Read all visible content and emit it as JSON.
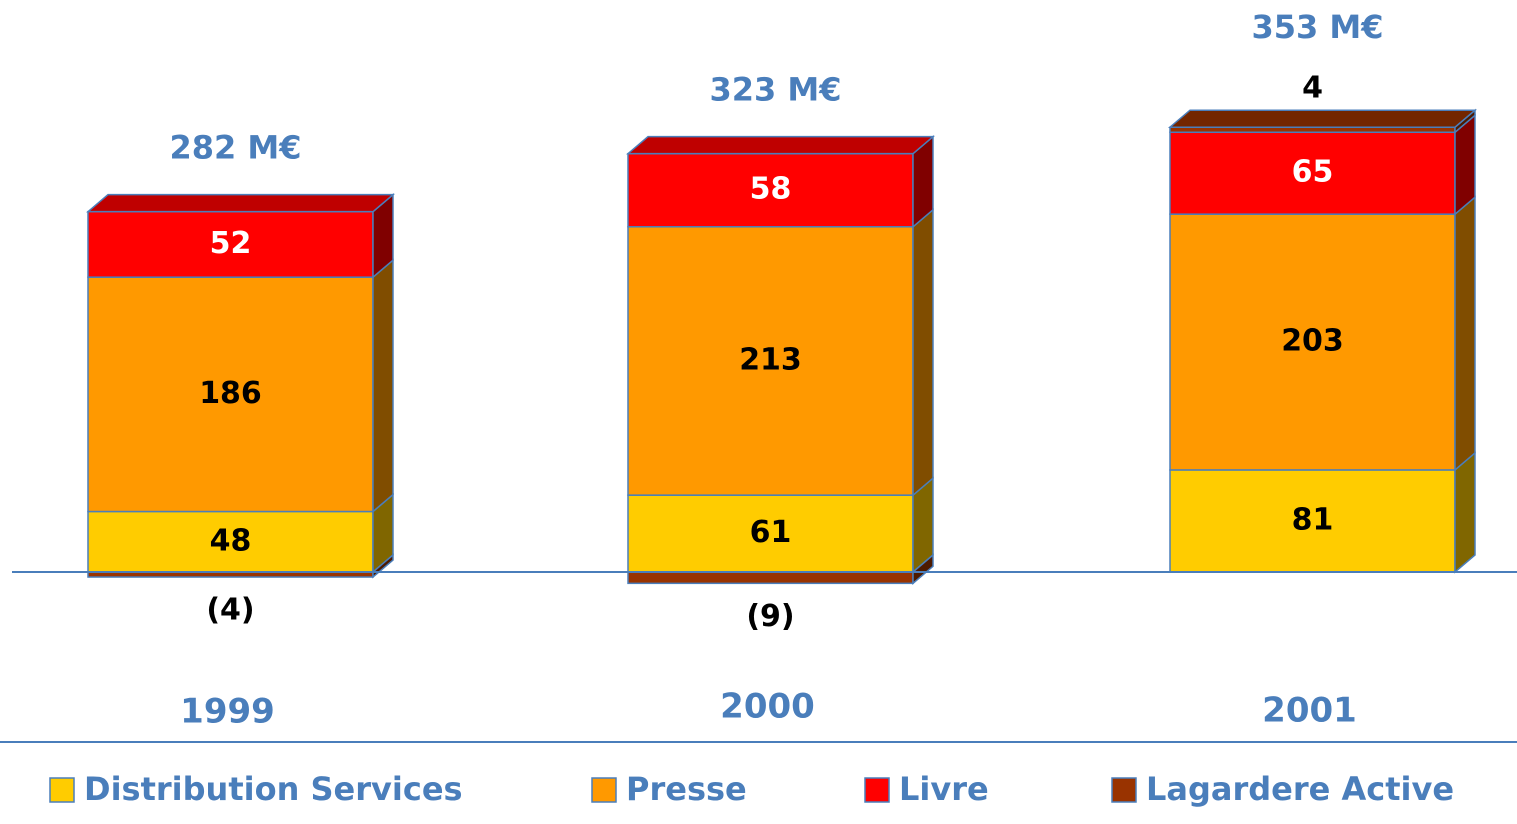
{
  "chart_data": {
    "type": "stacked-bar-3d",
    "categories": [
      "1999",
      "2000",
      "2001"
    ],
    "series": [
      {
        "name": "Distribution Services",
        "color": "#ffcc00",
        "label_color": "#000000",
        "values": [
          48,
          61,
          81
        ]
      },
      {
        "name": "Presse",
        "color": "#ff9900",
        "label_color": "#000000",
        "values": [
          186,
          213,
          203
        ]
      },
      {
        "name": "Livre",
        "color": "#ff0000",
        "label_color": "#ffffff",
        "values": [
          52,
          58,
          65
        ]
      },
      {
        "name": "Lagardere Active",
        "color": "#993300",
        "label_color": "#000000",
        "values": [
          -4,
          -9,
          4
        ],
        "value_labels": [
          "(4)",
          "(9)",
          "4"
        ]
      }
    ],
    "totals": {
      "values": [
        282,
        323,
        353
      ],
      "value_labels": [
        "282 M€",
        "323 M€",
        "353 M€"
      ]
    }
  }
}
